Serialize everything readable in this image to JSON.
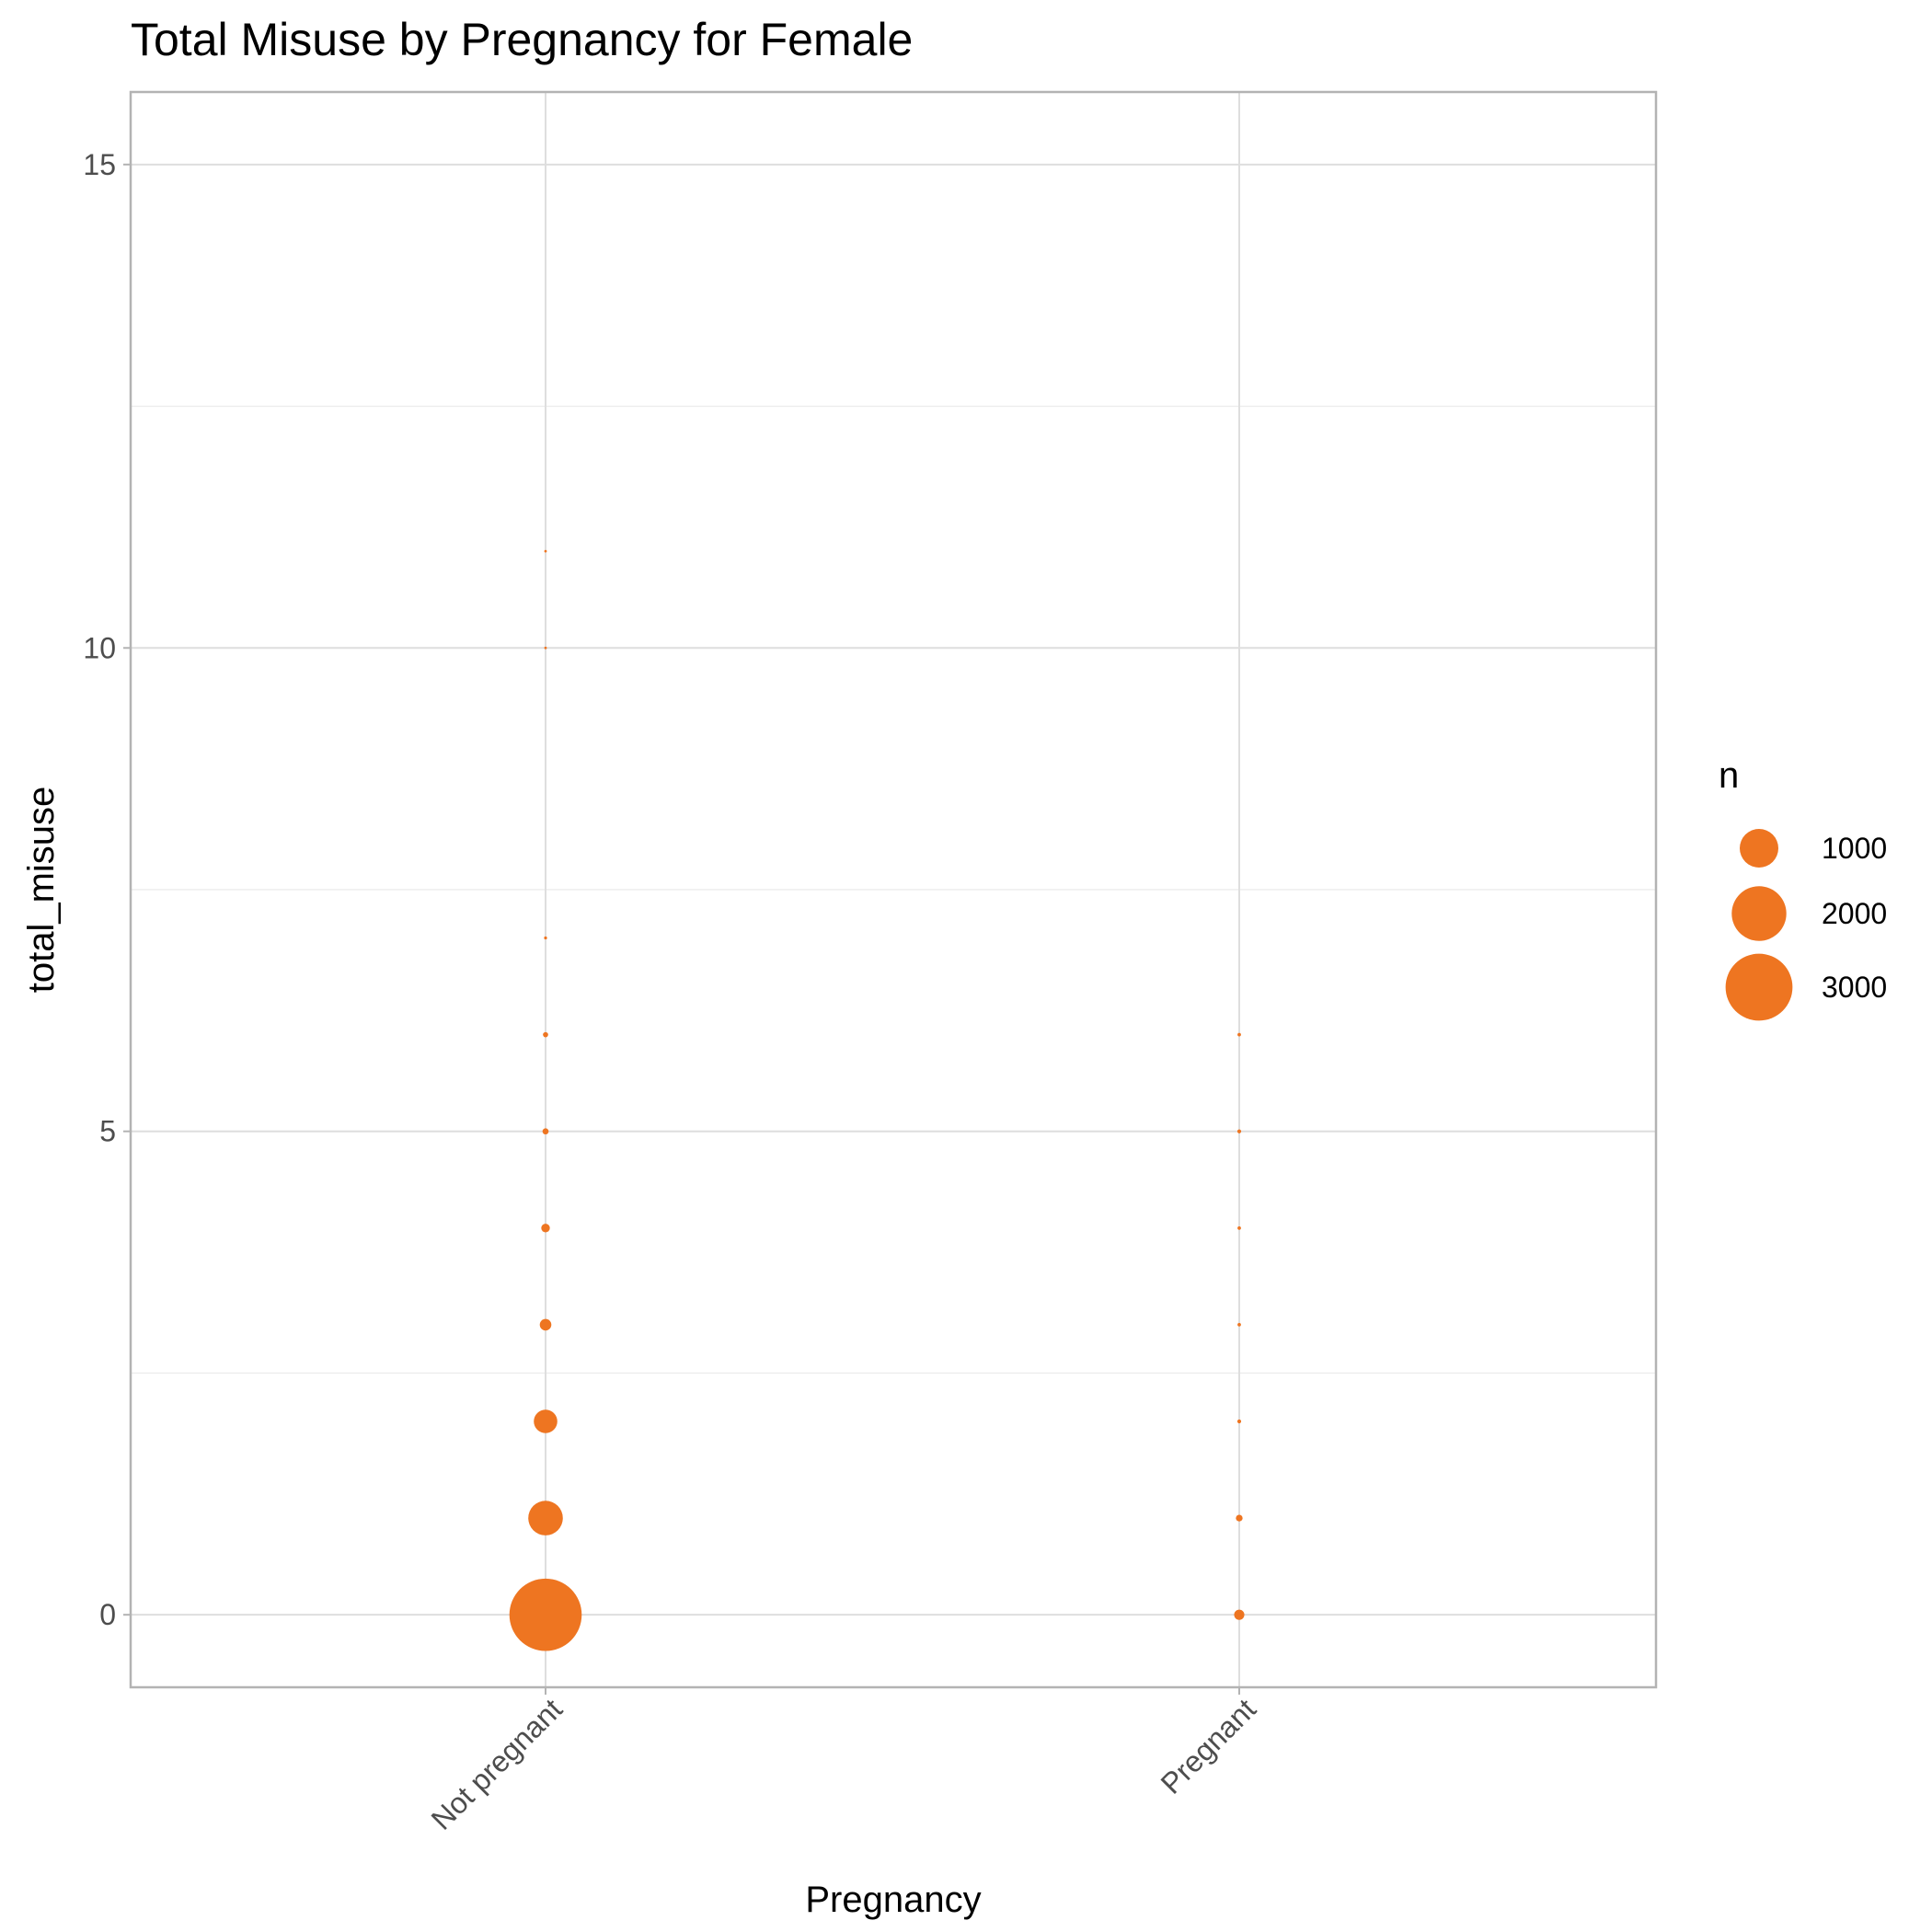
{
  "chart_data": {
    "type": "scatter",
    "title": "Total Misuse by Pregnancy for Female",
    "xlabel": "Pregnancy",
    "ylabel": "total_misuse",
    "categories": [
      "Not pregnant",
      "Pregnant"
    ],
    "ylim": [
      -0.75,
      15.75
    ],
    "yticks": [
      0,
      5,
      10,
      15
    ],
    "grid": true,
    "point_color": "#EE7521",
    "size_variable": "n",
    "legend": {
      "title": "n",
      "position": "right",
      "entries": [
        {
          "label": "1000",
          "value": 1000
        },
        {
          "label": "2000",
          "value": 2000
        },
        {
          "label": "3000",
          "value": 3000
        }
      ]
    },
    "points": [
      {
        "x": "Not pregnant",
        "y": 0,
        "n": 3500
      },
      {
        "x": "Not pregnant",
        "y": 1,
        "n": 800
      },
      {
        "x": "Not pregnant",
        "y": 2,
        "n": 370
      },
      {
        "x": "Not pregnant",
        "y": 3,
        "n": 90
      },
      {
        "x": "Not pregnant",
        "y": 4,
        "n": 50
      },
      {
        "x": "Not pregnant",
        "y": 5,
        "n": 25
      },
      {
        "x": "Not pregnant",
        "y": 6,
        "n": 18
      },
      {
        "x": "Not pregnant",
        "y": 7,
        "n": 6
      },
      {
        "x": "Not pregnant",
        "y": 10,
        "n": 4
      },
      {
        "x": "Not pregnant",
        "y": 11,
        "n": 3
      },
      {
        "x": "Pregnant",
        "y": 0,
        "n": 70
      },
      {
        "x": "Pregnant",
        "y": 1,
        "n": 30
      },
      {
        "x": "Pregnant",
        "y": 2,
        "n": 10
      },
      {
        "x": "Pregnant",
        "y": 3,
        "n": 8
      },
      {
        "x": "Pregnant",
        "y": 4,
        "n": 8
      },
      {
        "x": "Pregnant",
        "y": 5,
        "n": 10
      },
      {
        "x": "Pregnant",
        "y": 6,
        "n": 8
      }
    ]
  }
}
